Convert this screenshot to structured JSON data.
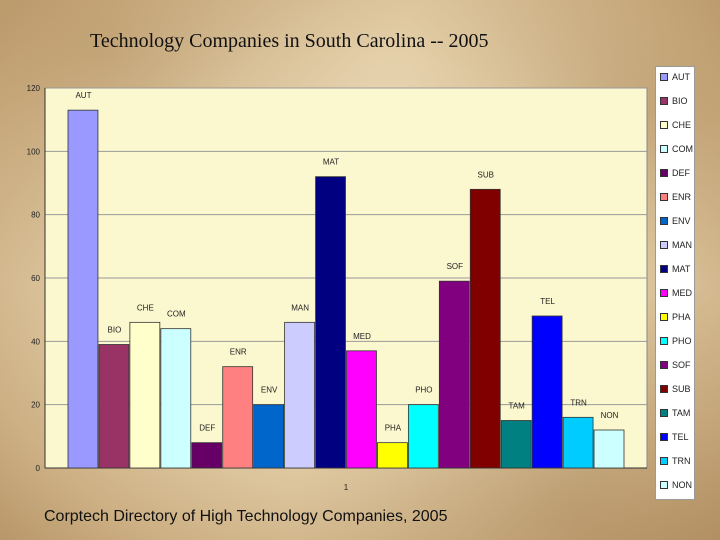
{
  "slide": {
    "title": "Technology Companies in South Carolina -- 2005",
    "source": "Corptech Directory of High Technology Companies, 2005"
  },
  "chart_data": {
    "type": "bar",
    "categories": [
      "1"
    ],
    "ylim": [
      0,
      120
    ],
    "yticks": [
      0,
      20,
      40,
      60,
      80,
      100,
      120
    ],
    "grid": true,
    "legend_position": "right",
    "plot_background": "#fbf7cf",
    "series": [
      {
        "name": "AUT",
        "values": [
          113
        ],
        "color": "#9999ff"
      },
      {
        "name": "BIO",
        "values": [
          39
        ],
        "color": "#993366"
      },
      {
        "name": "CHE",
        "values": [
          46
        ],
        "color": "#ffffcc"
      },
      {
        "name": "COM",
        "values": [
          44
        ],
        "color": "#ccffff"
      },
      {
        "name": "DEF",
        "values": [
          8
        ],
        "color": "#660066"
      },
      {
        "name": "ENR",
        "values": [
          32
        ],
        "color": "#ff8080"
      },
      {
        "name": "ENV",
        "values": [
          20
        ],
        "color": "#0066cc"
      },
      {
        "name": "MAN",
        "values": [
          46
        ],
        "color": "#ccccff"
      },
      {
        "name": "MAT",
        "values": [
          92
        ],
        "color": "#000080"
      },
      {
        "name": "MED",
        "values": [
          37
        ],
        "color": "#ff00ff"
      },
      {
        "name": "PHA",
        "values": [
          8
        ],
        "color": "#ffff00"
      },
      {
        "name": "PHO",
        "values": [
          20
        ],
        "color": "#00ffff"
      },
      {
        "name": "SOF",
        "values": [
          59
        ],
        "color": "#800080"
      },
      {
        "name": "SUB",
        "values": [
          88
        ],
        "color": "#800000"
      },
      {
        "name": "TAM",
        "values": [
          15
        ],
        "color": "#008080"
      },
      {
        "name": "TEL",
        "values": [
          48
        ],
        "color": "#0000ff"
      },
      {
        "name": "TRN",
        "values": [
          16
        ],
        "color": "#00ccff"
      },
      {
        "name": "NON",
        "values": [
          12
        ],
        "color": "#ccffff"
      }
    ]
  }
}
